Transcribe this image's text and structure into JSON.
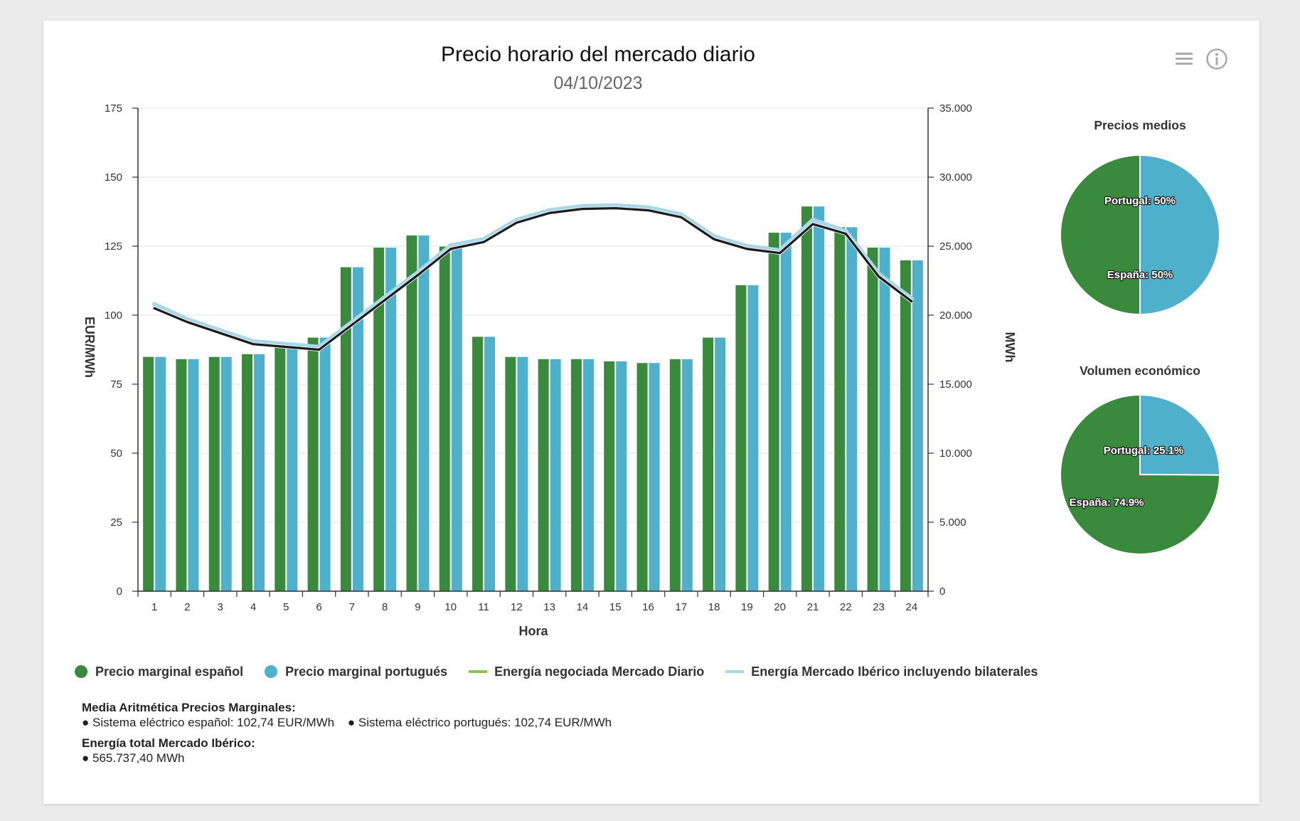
{
  "title": "Precio horario del mercado diario",
  "subtitle": "04/10/2023",
  "icons": {
    "menu": "menu-icon",
    "info": "info-icon"
  },
  "colors": {
    "spain": "#3a8a3e",
    "portugal": "#4fb0cc",
    "energy_daily": "#1b1b1b",
    "energy_iberian": "#a8d8e8",
    "legend_energy_daily": "#8cc44c"
  },
  "chart_data": [
    {
      "type": "bar",
      "title": "Precio horario del mercado diario",
      "subtitle": "04/10/2023",
      "xlabel": "Hora",
      "ylabel": "EUR/MWh",
      "y2label": "MWh",
      "categories": [
        "1",
        "2",
        "3",
        "4",
        "5",
        "6",
        "7",
        "8",
        "9",
        "10",
        "11",
        "12",
        "13",
        "14",
        "15",
        "16",
        "17",
        "18",
        "19",
        "20",
        "21",
        "22",
        "23",
        "24"
      ],
      "ylim": [
        0,
        175
      ],
      "yticks": [
        "0",
        "25",
        "50",
        "75",
        "100",
        "125",
        "150",
        "175"
      ],
      "y2lim": [
        0,
        35000
      ],
      "y2ticks": [
        "0",
        "5.000",
        "10.000",
        "15.000",
        "20.000",
        "25.000",
        "30.000",
        "35.000"
      ],
      "grid": true,
      "legend_position": "bottom",
      "series": [
        {
          "name": "Precio marginal español",
          "type": "bar",
          "axis": "left",
          "values": [
            85,
            84.2,
            85,
            86,
            89.5,
            92,
            117.5,
            124.6,
            129,
            125,
            92.3,
            85,
            84.2,
            84.2,
            83.4,
            82.8,
            84.2,
            92,
            111,
            130,
            139.5,
            132,
            124.6,
            120
          ]
        },
        {
          "name": "Precio marginal portugués",
          "type": "bar",
          "axis": "left",
          "values": [
            85,
            84.2,
            85,
            86,
            89.5,
            92,
            117.5,
            124.6,
            129,
            125,
            92.3,
            85,
            84.2,
            84.2,
            83.4,
            82.8,
            84.2,
            92,
            111,
            130,
            139.5,
            132,
            124.6,
            120
          ]
        },
        {
          "name": "Energía negociada Mercado Diario",
          "type": "line",
          "axis": "right",
          "values": [
            20500,
            19500,
            18700,
            17900,
            17700,
            17500,
            19300,
            21100,
            22900,
            24800,
            25300,
            26700,
            27400,
            27700,
            27750,
            27600,
            27100,
            25500,
            24800,
            24500,
            26600,
            25900,
            22800,
            21000
          ]
        },
        {
          "name": "Energía Mercado Ibérico incluyendo bilaterales",
          "type": "line",
          "axis": "right",
          "values": [
            20800,
            19700,
            18900,
            18100,
            17900,
            17700,
            19500,
            21300,
            23100,
            25050,
            25500,
            26900,
            27600,
            27900,
            27950,
            27800,
            27300,
            25700,
            25000,
            24700,
            26900,
            26100,
            23000,
            21200
          ]
        }
      ]
    },
    {
      "type": "pie",
      "title": "Precios medios",
      "labels": [
        "Portugal",
        "España"
      ],
      "values": [
        50,
        50
      ],
      "data_labels": [
        "Portugal: 50%",
        "España: 50%"
      ]
    },
    {
      "type": "pie",
      "title": "Volumen económico",
      "labels": [
        "Portugal",
        "España"
      ],
      "values": [
        25.1,
        74.9
      ],
      "data_labels": [
        "Portugal: 25.1%",
        "España: 74.9%"
      ]
    }
  ],
  "legend": [
    {
      "label": "Precio marginal español",
      "symbol": "dot",
      "color": "#3a8a3e"
    },
    {
      "label": "Precio marginal portugués",
      "symbol": "dot",
      "color": "#4fb0cc"
    },
    {
      "label": "Energía negociada Mercado Diario",
      "symbol": "line",
      "color": "#8cc44c"
    },
    {
      "label": "Energía Mercado Ibérico incluyendo bilaterales",
      "symbol": "line",
      "color": "#a8d8e8"
    }
  ],
  "summary": {
    "avg_heading": "Media Aritmética Precios Marginales:",
    "avg_spain": "● Sistema eléctrico español: 102,74 EUR/MWh",
    "avg_portugal": "● Sistema eléctrico portugués: 102,74 EUR/MWh",
    "energy_heading": "Energía total Mercado Ibérico:",
    "energy_total": "● 565.737,40 MWh"
  }
}
